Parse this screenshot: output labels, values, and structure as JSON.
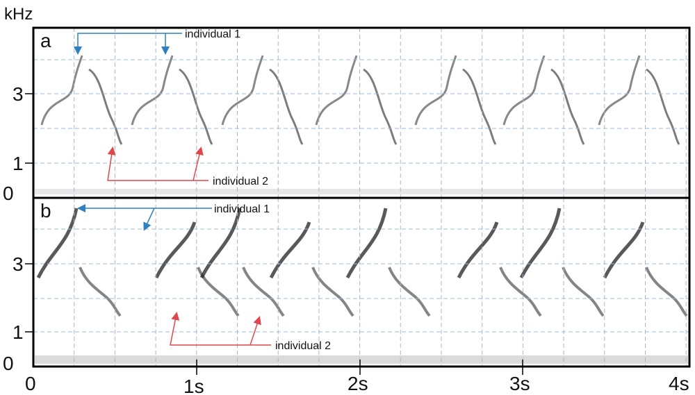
{
  "axis": {
    "y_unit": "kHz",
    "y_ticks": [
      "3",
      "1",
      "0"
    ],
    "x_ticks": [
      "0",
      "1s",
      "2s",
      "3s",
      "4s"
    ]
  },
  "panels": [
    {
      "label": "a",
      "annotations": [
        "individual 1",
        "individual 2"
      ]
    },
    {
      "label": "b",
      "annotations": [
        "individual 1",
        "individual 2"
      ]
    }
  ]
}
